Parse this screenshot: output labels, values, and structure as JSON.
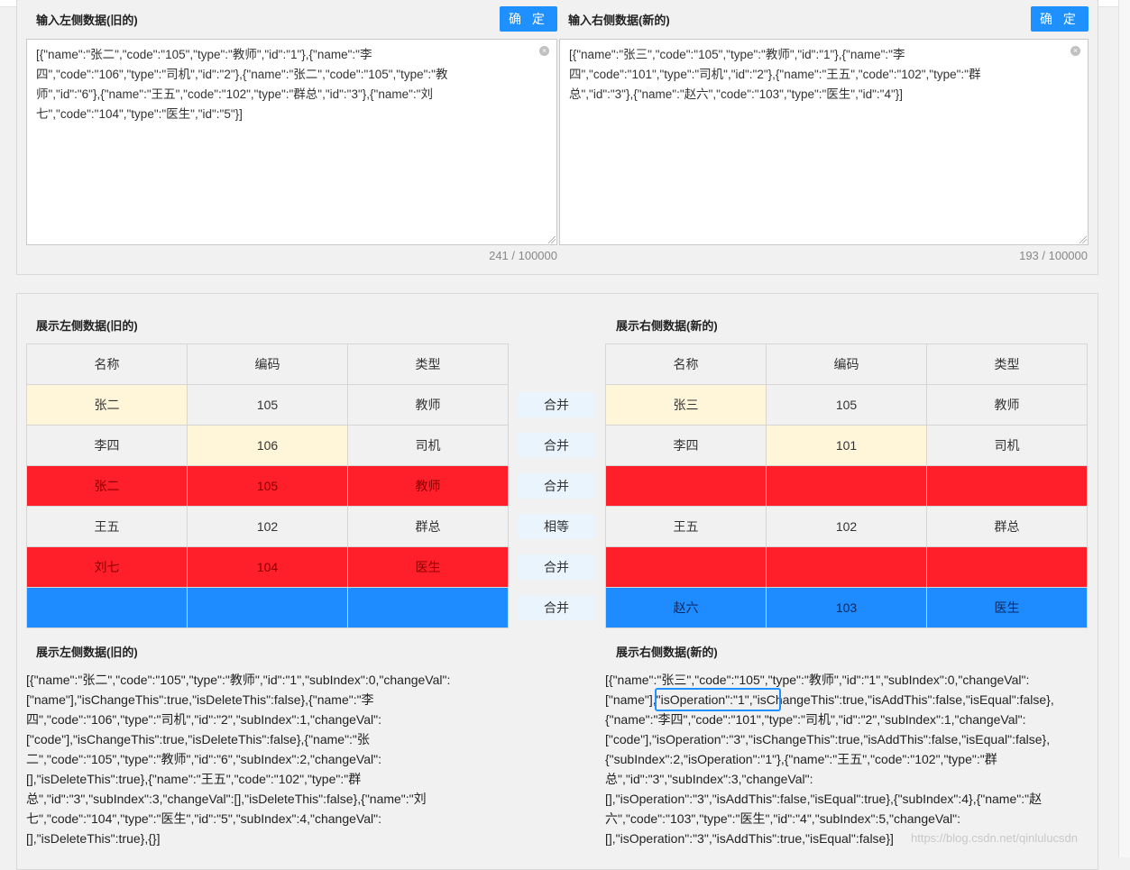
{
  "top": {
    "left_title": "输入左侧数据(旧的)",
    "right_title": "输入右侧数据(新的)",
    "confirm_label": "确 定",
    "left_input_lines": [
      "[{\"name\":\"张二\",\"code\":\"105\",\"type\":\"教师\",\"id\":\"1\"},{\"name\":\"李",
      "四\",\"code\":\"106\",\"type\":\"司机\",\"id\":\"2\"},{\"name\":\"张二\",\"code\":\"105\",\"type\":\"教",
      "师\",\"id\":\"6\"},{\"name\":\"王五\",\"code\":\"102\",\"type\":\"群总\",\"id\":\"3\"},{\"name\":\"刘",
      "七\",\"code\":\"104\",\"type\":\"医生\",\"id\":\"5\"}]"
    ],
    "right_input_lines": [
      "[{\"name\":\"张三\",\"code\":\"105\",\"type\":\"教师\",\"id\":\"1\"},{\"name\":\"李",
      "四\",\"code\":\"101\",\"type\":\"司机\",\"id\":\"2\"},{\"name\":\"王五\",\"code\":\"102\",\"type\":\"群",
      "总\",\"id\":\"3\"},{\"name\":\"赵六\",\"code\":\"103\",\"type\":\"医生\",\"id\":\"4\"}]"
    ],
    "left_counter": "241 / 100000",
    "right_counter": "193 / 100000"
  },
  "display": {
    "left_title": "展示左侧数据(旧的)",
    "right_title": "展示右侧数据(新的)",
    "headers": [
      "名称",
      "编码",
      "类型"
    ],
    "colors": {
      "yellow": "#fff6da",
      "red": "#ff1f2a",
      "blue": "#1e8bff",
      "neutral": "#f1f1f1",
      "button": "#1e90ff"
    },
    "left_rows": [
      {
        "cells": [
          "张二",
          "105",
          "教师"
        ],
        "colors": [
          "yellow",
          "white",
          "white"
        ]
      },
      {
        "cells": [
          "李四",
          "106",
          "司机"
        ],
        "colors": [
          "white",
          "yellow",
          "white"
        ]
      },
      {
        "cells": [
          "张二",
          "105",
          "教师"
        ],
        "colors": [
          "red",
          "red",
          "red"
        ]
      },
      {
        "cells": [
          "王五",
          "102",
          "群总"
        ],
        "colors": [
          "white",
          "white",
          "white"
        ]
      },
      {
        "cells": [
          "刘七",
          "104",
          "医生"
        ],
        "colors": [
          "red",
          "red",
          "red"
        ]
      },
      {
        "cells": [
          "",
          "",
          ""
        ],
        "colors": [
          "blue",
          "blue",
          "blue"
        ]
      }
    ],
    "right_rows": [
      {
        "cells": [
          "张三",
          "105",
          "教师"
        ],
        "colors": [
          "yellow",
          "white",
          "white"
        ]
      },
      {
        "cells": [
          "李四",
          "101",
          "司机"
        ],
        "colors": [
          "white",
          "yellow",
          "white"
        ]
      },
      {
        "cells": [
          "",
          "",
          ""
        ],
        "colors": [
          "red",
          "red",
          "red"
        ]
      },
      {
        "cells": [
          "王五",
          "102",
          "群总"
        ],
        "colors": [
          "white",
          "white",
          "white"
        ]
      },
      {
        "cells": [
          "",
          "",
          ""
        ],
        "colors": [
          "red",
          "red",
          "red"
        ]
      },
      {
        "cells": [
          "赵六",
          "103",
          "医生"
        ],
        "colors": [
          "blue",
          "blue",
          "blue"
        ]
      }
    ],
    "actions": [
      "合并",
      "合并",
      "合并",
      "相等",
      "合并",
      "合并"
    ]
  },
  "json_output": {
    "left_title": "展示左侧数据(旧的)",
    "right_title": "展示右侧数据(新的)",
    "left_lines": [
      "[{\"name\":\"张二\",\"code\":\"105\",\"type\":\"教师\",\"id\":\"1\",\"subIndex\":0,\"changeVal\":",
      "[\"name\"],\"isChangeThis\":true,\"isDeleteThis\":false},{\"name\":\"李",
      "四\",\"code\":\"106\",\"type\":\"司机\",\"id\":\"2\",\"subIndex\":1,\"changeVal\":",
      "[\"code\"],\"isChangeThis\":true,\"isDeleteThis\":false},{\"name\":\"张",
      "二\",\"code\":\"105\",\"type\":\"教师\",\"id\":\"6\",\"subIndex\":2,\"changeVal\":",
      "[],\"isDeleteThis\":true},{\"name\":\"王五\",\"code\":\"102\",\"type\":\"群",
      "总\",\"id\":\"3\",\"subIndex\":3,\"changeVal\":[],\"isDeleteThis\":false},{\"name\":\"刘",
      "七\",\"code\":\"104\",\"type\":\"医生\",\"id\":\"5\",\"subIndex\":4,\"changeVal\":",
      "[],\"isDeleteThis\":true},{}]"
    ],
    "right_lines": [
      "[{\"name\":\"张三\",\"code\":\"105\",\"type\":\"教师\",\"id\":\"1\",\"subIndex\":0,\"changeVal\":",
      "[\"name\"],\"isOperation\":\"1\",\"isChangeThis\":true,\"isAddThis\":false,\"isEqual\":false},",
      "{\"name\":\"李四\",\"code\":\"101\",\"type\":\"司机\",\"id\":\"2\",\"subIndex\":1,\"changeVal\":",
      "[\"code\"],\"isOperation\":\"3\",\"isChangeThis\":true,\"isAddThis\":false,\"isEqual\":false},",
      "{\"subIndex\":2,\"isOperation\":\"1\"},{\"name\":\"王五\",\"code\":\"102\",\"type\":\"群",
      "总\",\"id\":\"3\",\"subIndex\":3,\"changeVal\":",
      "[],\"isOperation\":\"3\",\"isAddThis\":false,\"isEqual\":true},{\"subIndex\":4},{\"name\":\"赵",
      "六\",\"code\":\"103\",\"type\":\"医生\",\"id\":\"4\",\"subIndex\":5,\"changeVal\":",
      "[],\"isOperation\":\"3\",\"isAddThis\":true,\"isEqual\":false}]"
    ]
  },
  "watermark": "https://blog.csdn.net/qinlulucsdn"
}
